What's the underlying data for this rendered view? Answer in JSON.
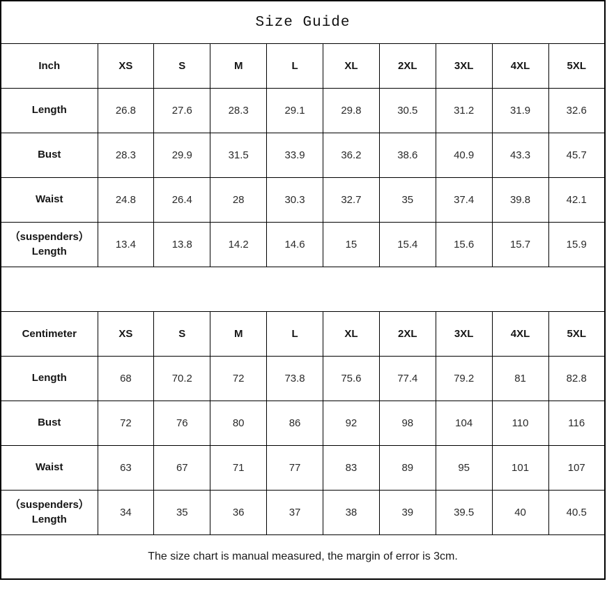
{
  "title": "Size Guide",
  "footer_note": "The size chart is manual measured, the margin of error is 3cm.",
  "sizes": [
    "XS",
    "S",
    "M",
    "L",
    "XL",
    "2XL",
    "3XL",
    "4XL",
    "5XL"
  ],
  "inch": {
    "unit": "Inch",
    "rows": [
      {
        "label": "Length",
        "values": [
          "26.8",
          "27.6",
          "28.3",
          "29.1",
          "29.8",
          "30.5",
          "31.2",
          "31.9",
          "32.6"
        ]
      },
      {
        "label": "Bust",
        "values": [
          "28.3",
          "29.9",
          "31.5",
          "33.9",
          "36.2",
          "38.6",
          "40.9",
          "43.3",
          "45.7"
        ]
      },
      {
        "label": "Waist",
        "values": [
          "24.8",
          "26.4",
          "28",
          "30.3",
          "32.7",
          "35",
          "37.4",
          "39.8",
          "42.1"
        ]
      },
      {
        "label": "（suspenders）",
        "label2": "Length",
        "values": [
          "13.4",
          "13.8",
          "14.2",
          "14.6",
          "15",
          "15.4",
          "15.6",
          "15.7",
          "15.9"
        ]
      }
    ]
  },
  "cm": {
    "unit": "Centimeter",
    "rows": [
      {
        "label": "Length",
        "values": [
          "68",
          "70.2",
          "72",
          "73.8",
          "75.6",
          "77.4",
          "79.2",
          "81",
          "82.8"
        ]
      },
      {
        "label": "Bust",
        "values": [
          "72",
          "76",
          "80",
          "86",
          "92",
          "98",
          "104",
          "110",
          "116"
        ]
      },
      {
        "label": "Waist",
        "values": [
          "63",
          "67",
          "71",
          "77",
          "83",
          "89",
          "95",
          "101",
          "107"
        ]
      },
      {
        "label": "（suspenders）",
        "label2": "Length",
        "values": [
          "34",
          "35",
          "36",
          "37",
          "38",
          "39",
          "39.5",
          "40",
          "40.5"
        ]
      }
    ]
  }
}
